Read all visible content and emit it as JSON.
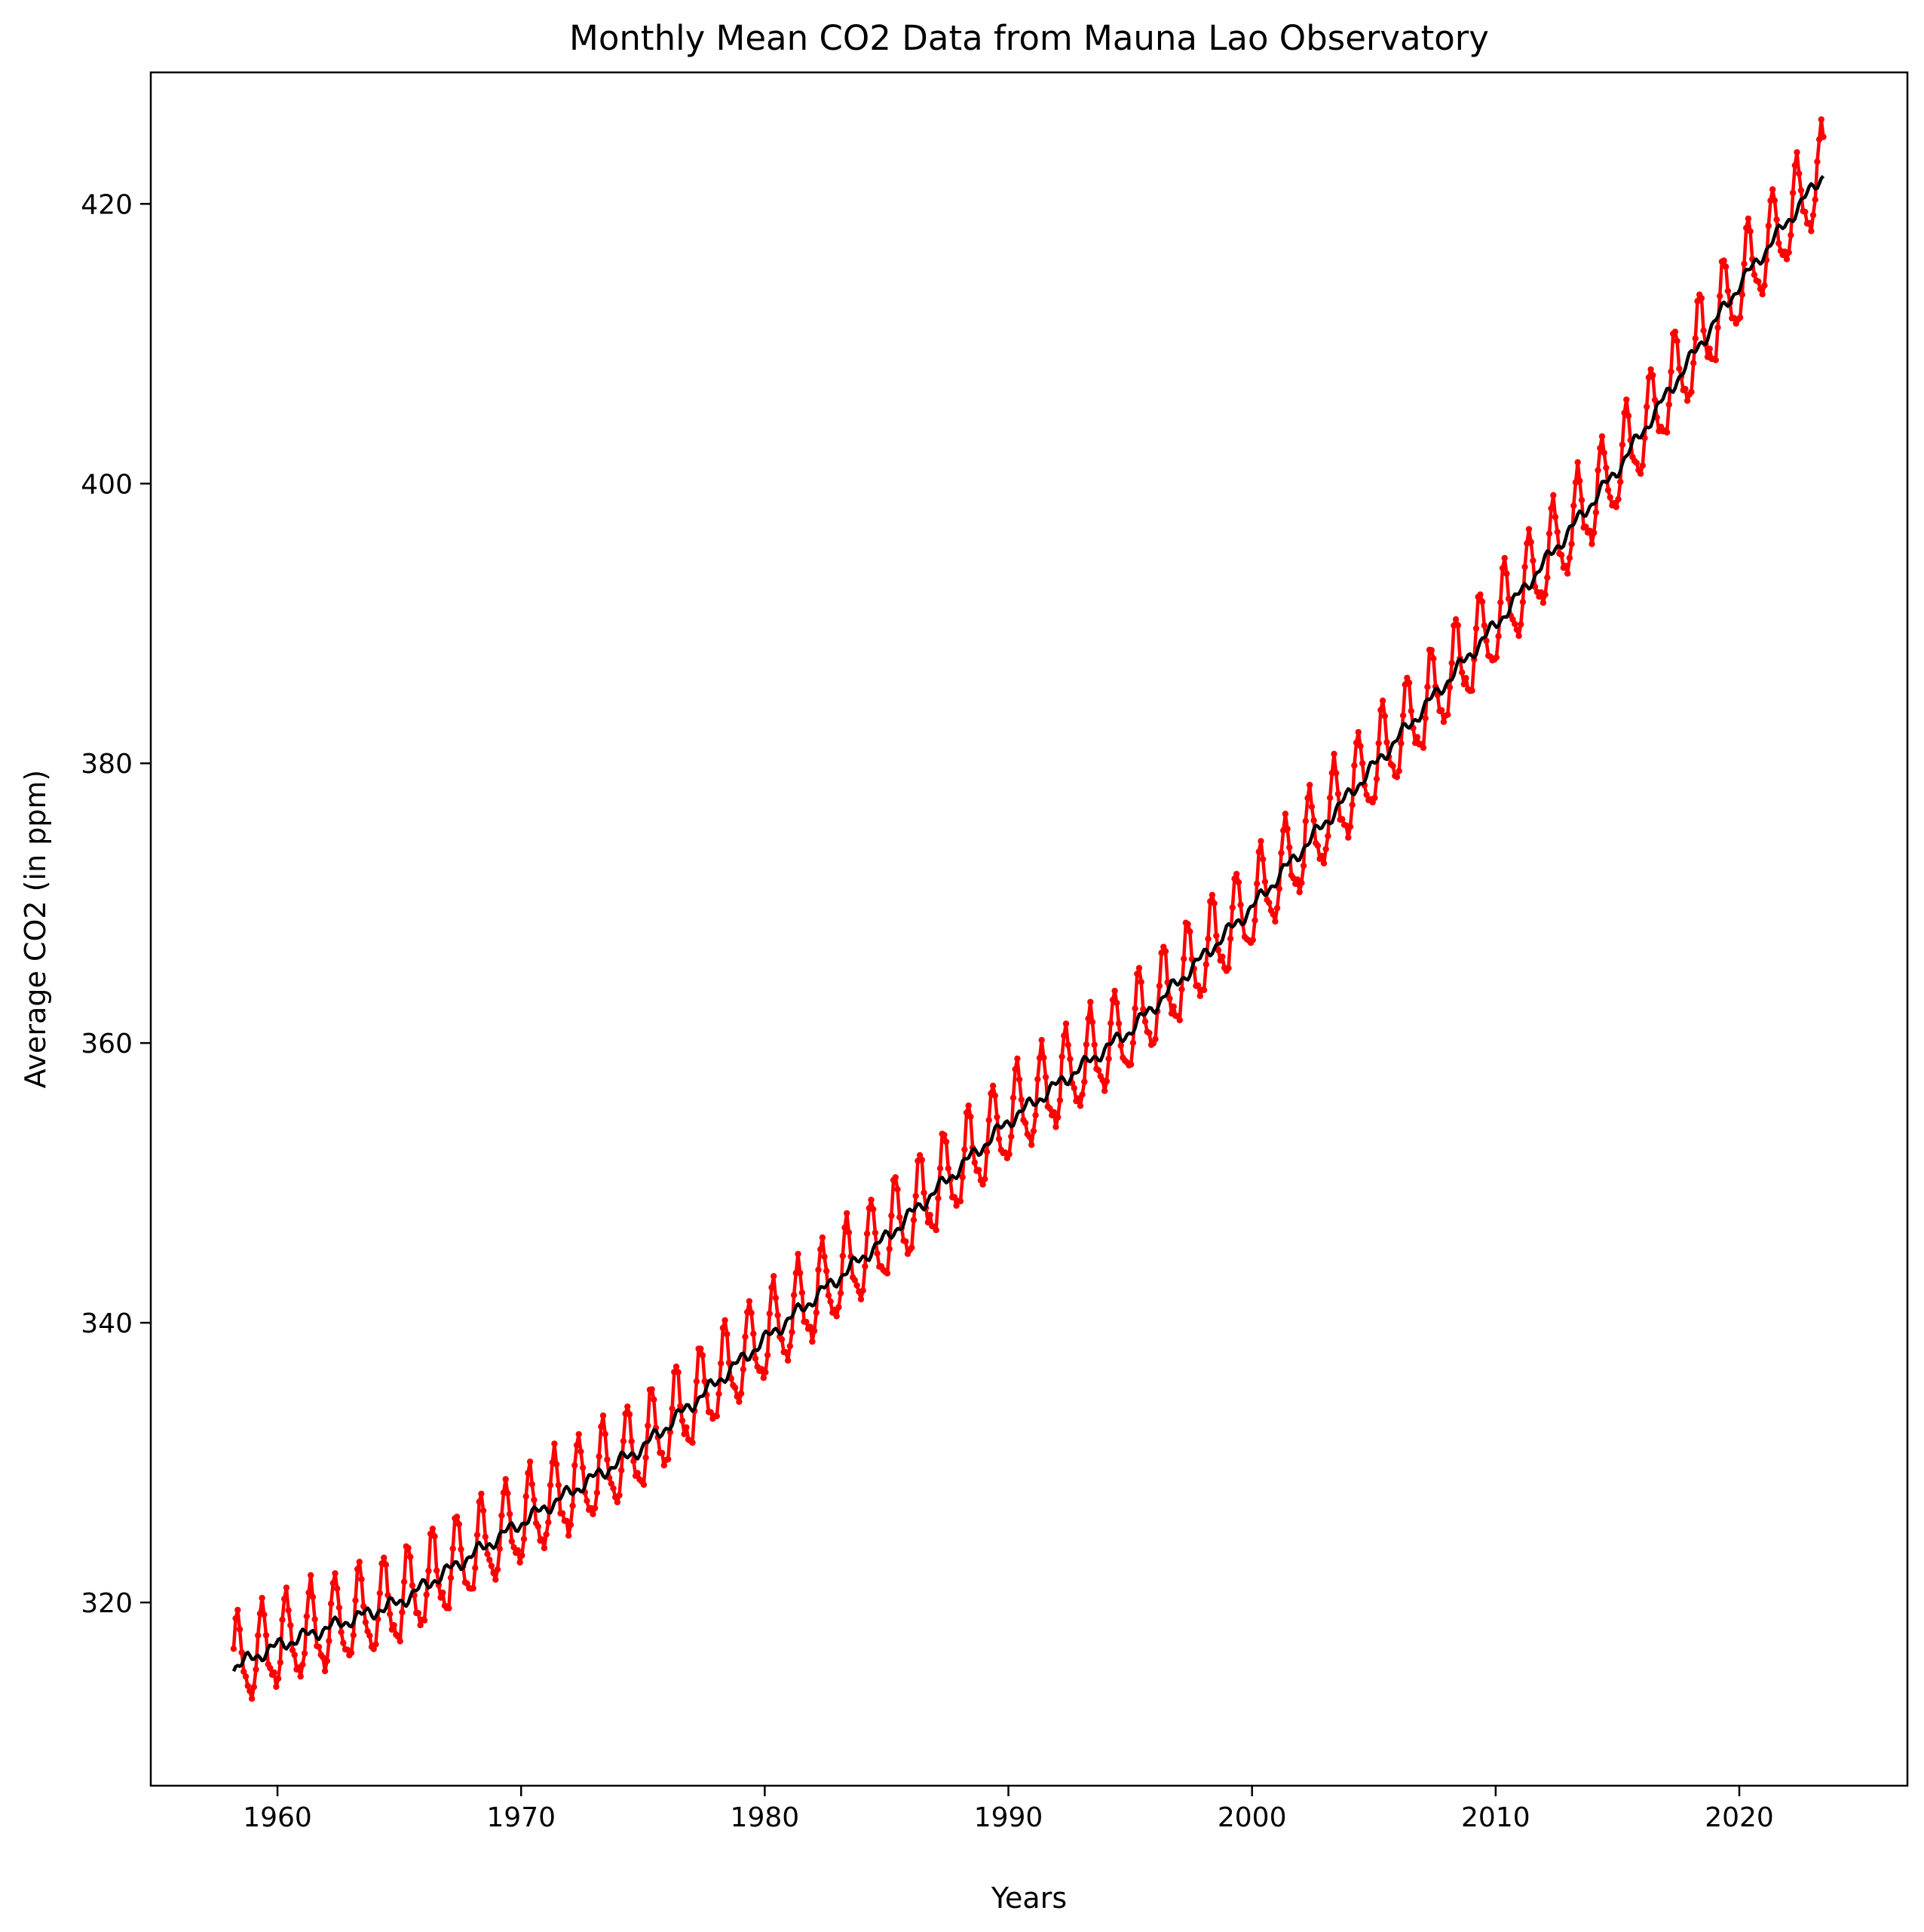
{
  "chart_data": {
    "type": "line",
    "title": "Monthly Mean CO2 Data from Mauna Lao Observatory",
    "xlabel": "Years",
    "ylabel": "Average CO2 (in ppm)",
    "xlim": [
      1954.8,
      2026.9
    ],
    "ylim": [
      306.9,
      429.4
    ],
    "x_ticks": [
      1960,
      1970,
      1980,
      1990,
      2000,
      2010,
      2020
    ],
    "y_ticks": [
      320,
      340,
      360,
      380,
      400,
      420
    ],
    "grid": false,
    "legend": "none",
    "x_range": [
      1958.2,
      2023.5
    ],
    "series": [
      {
        "style": "red line with small circular markers (monthly average)",
        "color": "#ff0000",
        "annual_trend": {
          "years": [
            1958,
            1960,
            1965,
            1970,
            1975,
            1980,
            1985,
            1990,
            1995,
            2000,
            2005,
            2010,
            2015,
            2020,
            2023
          ],
          "values": [
            315.2,
            316.9,
            320.0,
            325.7,
            331.1,
            338.8,
            346.1,
            354.4,
            360.9,
            369.7,
            379.8,
            389.9,
            401.0,
            414.2,
            421.1
          ]
        },
        "seasonal_amplitude_ppm": 3.0,
        "seasonal_peak_month": 5
      },
      {
        "style": "black line (deseasonalized trend)",
        "color": "#000000",
        "annual_trend": {
          "years": [
            1958,
            1960,
            1965,
            1970,
            1975,
            1980,
            1985,
            1990,
            1995,
            2000,
            2005,
            2010,
            2015,
            2020,
            2023
          ],
          "values": [
            315.2,
            316.9,
            320.0,
            325.7,
            331.1,
            338.8,
            346.1,
            354.4,
            360.9,
            369.7,
            379.8,
            389.9,
            401.0,
            414.2,
            421.1
          ]
        }
      }
    ]
  }
}
